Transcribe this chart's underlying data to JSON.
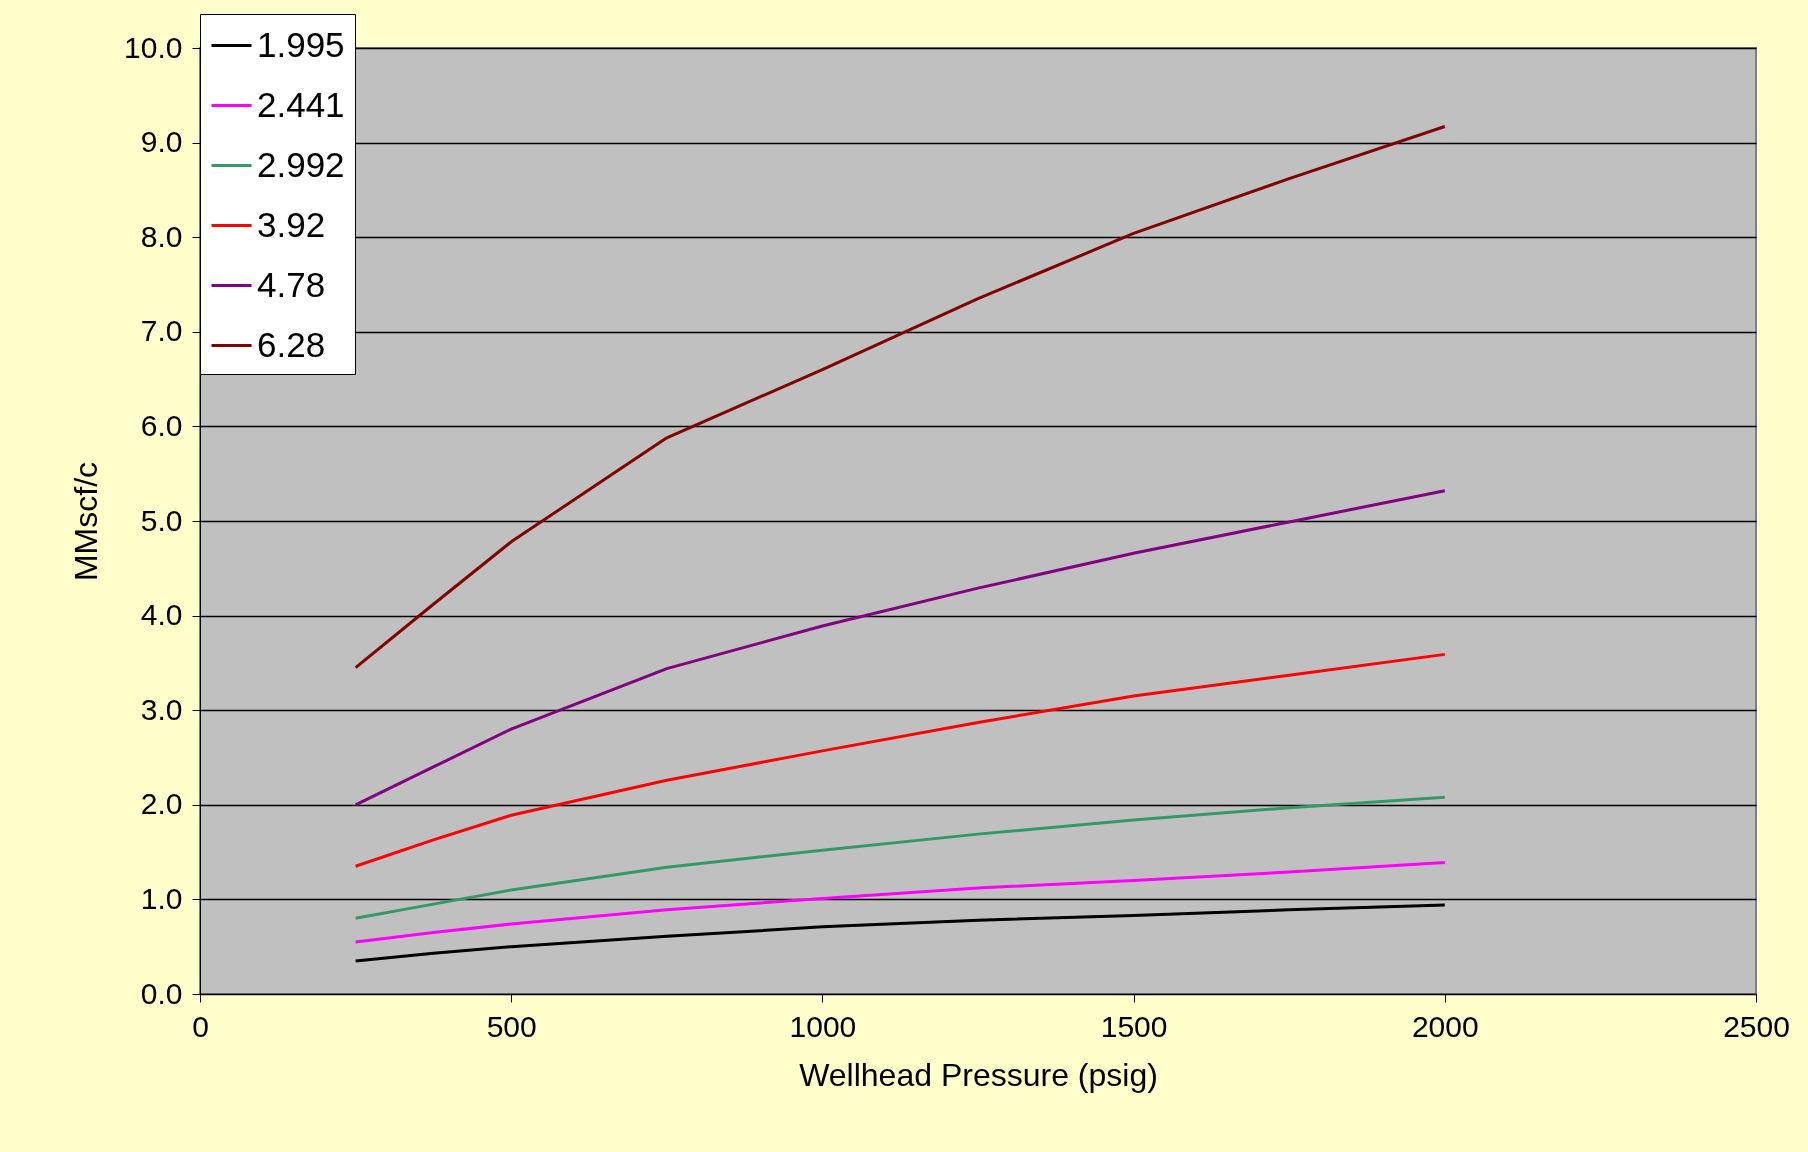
{
  "chart_data": {
    "type": "line",
    "xlabel": "Wellhead Pressure (psig)",
    "ylabel": "MMscf/c",
    "x": [
      250,
      375,
      500,
      750,
      1000,
      1250,
      1500,
      1750,
      2000
    ],
    "series": [
      {
        "name": "1.995",
        "color": "#000000",
        "values": [
          0.35,
          0.43,
          0.5,
          0.61,
          0.71,
          0.78,
          0.83,
          0.89,
          0.94
        ]
      },
      {
        "name": "2.441",
        "color": "#ff00ff",
        "values": [
          0.55,
          0.65,
          0.74,
          0.89,
          1.01,
          1.12,
          1.2,
          1.29,
          1.39
        ]
      },
      {
        "name": "2.992",
        "color": "#339966",
        "values": [
          0.8,
          0.95,
          1.1,
          1.34,
          1.52,
          1.69,
          1.84,
          1.97,
          2.08
        ]
      },
      {
        "name": "3.92",
        "color": "#ff0000",
        "values": [
          1.35,
          1.63,
          1.89,
          2.26,
          2.57,
          2.87,
          3.15,
          3.37,
          3.59
        ]
      },
      {
        "name": "4.78",
        "color": "#800080",
        "values": [
          2.0,
          2.4,
          2.8,
          3.44,
          3.89,
          4.29,
          4.66,
          4.99,
          5.32
        ]
      },
      {
        "name": "6.28",
        "color": "#800000",
        "values": [
          3.45,
          4.12,
          4.78,
          5.88,
          6.6,
          7.35,
          8.04,
          8.62,
          9.17
        ]
      }
    ],
    "xlim": [
      0,
      2500
    ],
    "xticks": [
      0,
      500,
      1000,
      1500,
      2000,
      2500
    ],
    "ylim": [
      0,
      10
    ],
    "yticks": [
      {
        "value": 0,
        "label": "0.0"
      },
      {
        "value": 1,
        "label": "1.0"
      },
      {
        "value": 2,
        "label": "2.0"
      },
      {
        "value": 3,
        "label": "3.0"
      },
      {
        "value": 4,
        "label": "4.0"
      },
      {
        "value": 5,
        "label": "5.0"
      },
      {
        "value": 6,
        "label": "6.0"
      },
      {
        "value": 7,
        "label": "7.0"
      },
      {
        "value": 8,
        "label": "8.0"
      },
      {
        "value": 9,
        "label": "9.0"
      },
      {
        "value": 10,
        "label": "10.0"
      }
    ],
    "grid": "y",
    "legend": "top left"
  }
}
